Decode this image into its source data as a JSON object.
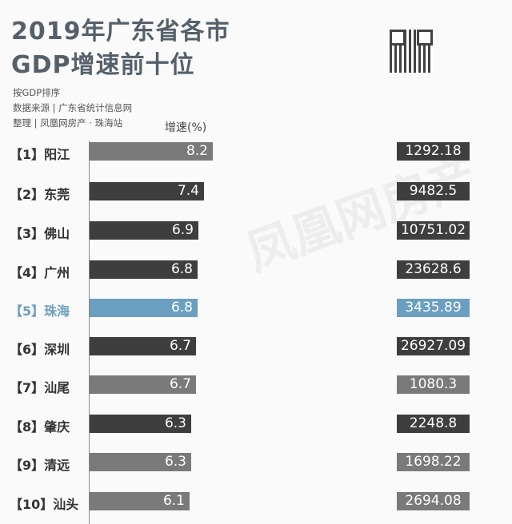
{
  "header": {
    "title_line1": "2019年广东省各市",
    "title_line2": "GDP增速前十位",
    "sort_note": "按GDP排序",
    "source": "数据来源 | 广东省统计信息网",
    "credit": "整理 | 凤凰网房产 · 珠海站"
  },
  "watermark": "凤凰网房产",
  "colors": {
    "gray": "#7a7a7a",
    "dark": "#3e3e3e",
    "highlight": "#6b9fbf"
  },
  "chart_data": {
    "type": "bar",
    "title": "2019年广东省各市GDP增速前十位",
    "xlabel": "增速(%)",
    "categories": [
      "【1】阳江",
      "【2】东莞",
      "【3】佛山",
      "【4】广州",
      "【5】珠海",
      "【6】深圳",
      "【7】汕尾",
      "【8】肇庆",
      "【9】清远",
      "【10】汕头"
    ],
    "series": [
      {
        "name": "增速(%)",
        "values": [
          8.2,
          7.4,
          6.9,
          6.8,
          6.8,
          6.7,
          6.7,
          6.3,
          6.3,
          6.1
        ]
      },
      {
        "name": "GDP",
        "labels": [
          "1292.18",
          "9482.5",
          "10751.02",
          "23628.6",
          "3435.89",
          "26927.09",
          "1080.3",
          "2248.8",
          "1698.22",
          "2694.08"
        ]
      }
    ],
    "row_colors": [
      "gray",
      "dark",
      "dark",
      "dark",
      "highlight",
      "dark",
      "gray",
      "dark",
      "gray",
      "gray"
    ],
    "gdp_colors": [
      "dark",
      "dark",
      "dark",
      "dark",
      "highlight",
      "dark",
      "gray",
      "dark",
      "gray",
      "gray"
    ],
    "highlight": "【5】珠海"
  }
}
